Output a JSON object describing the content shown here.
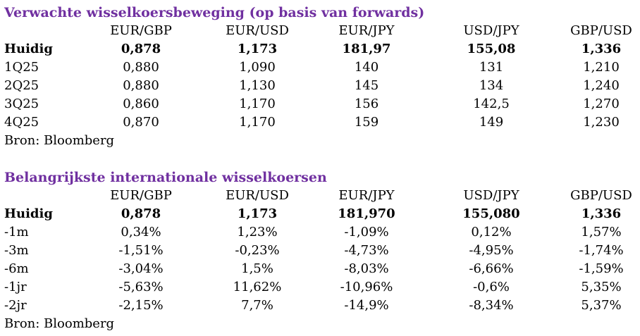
{
  "colors": {
    "heading": "#7030a0",
    "text": "#000000",
    "background": "#ffffff"
  },
  "table1": {
    "title": "Verwachte wisselkoersbeweging (op basis van forwards)",
    "headers": [
      "EUR/GBP",
      "EUR/USD",
      "EUR/JPY",
      "USD/JPY",
      "GBP/USD"
    ],
    "rows": [
      {
        "label": "Huidig",
        "bold": true,
        "values": [
          "0,878",
          "1,173",
          "181,97",
          "155,08",
          "1,336"
        ]
      },
      {
        "label": "1Q25",
        "values": [
          "0,880",
          "1,090",
          "140",
          "131",
          "1,210"
        ]
      },
      {
        "label": "2Q25",
        "values": [
          "0,880",
          "1,130",
          "145",
          "134",
          "1,240"
        ]
      },
      {
        "label": "3Q25",
        "values": [
          "0,860",
          "1,170",
          "156",
          "142,5",
          "1,270"
        ]
      },
      {
        "label": "4Q25",
        "values": [
          "0,870",
          "1,170",
          "159",
          "149",
          "1,230"
        ]
      }
    ],
    "source": "Bron: Bloomberg"
  },
  "table2": {
    "title": "Belangrijkste internationale wisselkoersen",
    "headers": [
      "EUR/GBP",
      "EUR/USD",
      "EUR/JPY",
      "USD/JPY",
      "GBP/USD"
    ],
    "rows": [
      {
        "label": "Huidig",
        "bold": true,
        "values": [
          "0,878",
          "1,173",
          "181,970",
          "155,080",
          "1,336"
        ]
      },
      {
        "label": "-1m",
        "values": [
          "0,34%",
          "1,23%",
          "-1,09%",
          "0,12%",
          "1,57%"
        ]
      },
      {
        "label": "-3m",
        "values": [
          "-1,51%",
          "-0,23%",
          "-4,73%",
          "-4,95%",
          "-1,74%"
        ]
      },
      {
        "label": "-6m",
        "values": [
          "-3,04%",
          "1,5%",
          "-8,03%",
          "-6,66%",
          "-1,59%"
        ]
      },
      {
        "label": "-1jr",
        "values": [
          "-5,63%",
          "11,62%",
          "-10,96%",
          "-0,6%",
          "5,35%"
        ]
      },
      {
        "label": "-2jr",
        "values": [
          "-2,15%",
          "7,7%",
          "-14,9%",
          "-8,34%",
          "5,37%"
        ]
      }
    ],
    "source": "Bron: Bloomberg"
  }
}
